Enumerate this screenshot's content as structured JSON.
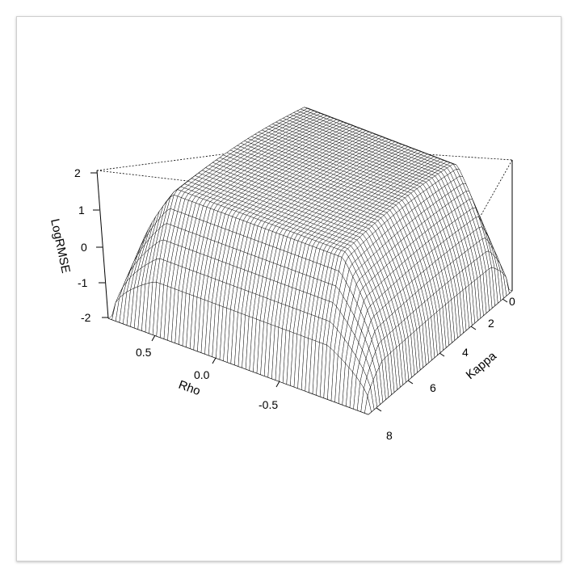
{
  "chart_data": {
    "type": "surface",
    "zlabel": "LogRMSE",
    "xlabel": "Rho",
    "ylabel": "Kappa",
    "z_ticks": [
      "2",
      "1",
      "0",
      "-1",
      "-2"
    ],
    "rho_ticks": [
      "0.5",
      "0.0",
      "-0.5"
    ],
    "kappa_ticks": [
      "0",
      "2",
      "4",
      "6",
      "8"
    ],
    "rho_range": [
      -0.9,
      0.9
    ],
    "kappa_range": [
      0,
      8
    ],
    "zlim": [
      -2,
      2
    ],
    "grid": false,
    "style": "black wireframe perspective surface, opaque facets",
    "colors": {
      "line": "#000000",
      "facet": "#ffffff",
      "frame": "#cfcfcf"
    }
  }
}
